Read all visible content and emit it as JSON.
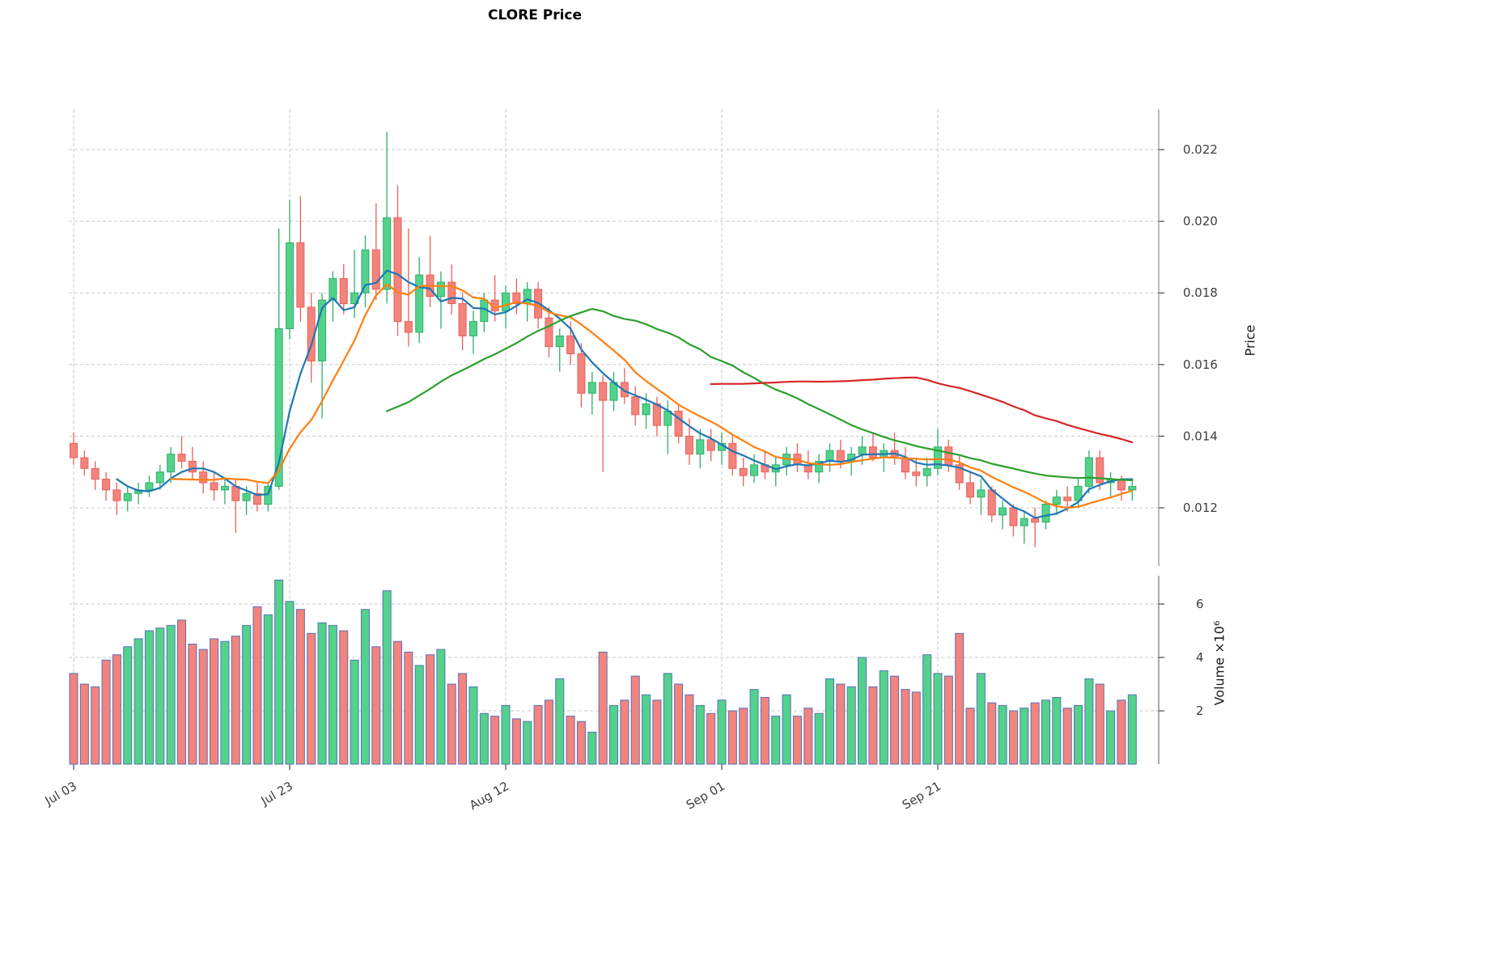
{
  "title": "CLORE Price",
  "chart_data": {
    "type": "candlestick",
    "title": "CLORE Price",
    "grid": "dashed",
    "legend": "none",
    "price_axis": {
      "label": "Price",
      "side": "right",
      "ticks": [
        0.012,
        0.014,
        0.016,
        0.018,
        0.02,
        0.022
      ],
      "ylim": [
        0.0105,
        0.0231
      ]
    },
    "volume_axis": {
      "label": "Volume ×10⁶",
      "side": "right",
      "ticks": [
        2,
        4,
        6
      ],
      "ylim": [
        0,
        7
      ]
    },
    "x_axis": {
      "tick_labels": [
        "Jul 03",
        "Jul 23",
        "Aug 12",
        "Sep 01",
        "Sep 21"
      ],
      "tick_indices": [
        0,
        20,
        40,
        60,
        80
      ],
      "label_rotation_deg": 30
    },
    "style": {
      "up": "#53d28b",
      "up_edge": "#2fae6b",
      "down": "#f3837d",
      "down_edge": "#e9605a",
      "volume_edge": "#5572b8",
      "grid_color": "#c9c9c9",
      "axis_color": "#444444",
      "background": "#ffffff"
    },
    "moving_averages": [
      {
        "name": "MA5",
        "window": 5,
        "color": "#1f77b4"
      },
      {
        "name": "MA10",
        "window": 10,
        "color": "#ff7f0e"
      },
      {
        "name": "MA30",
        "window": 30,
        "color": "#2ca02c"
      },
      {
        "name": "MA60",
        "window": 60,
        "color": "#d62728"
      }
    ],
    "dates": [
      "Jul 03",
      "Jul 04",
      "Jul 05",
      "Jul 06",
      "Jul 07",
      "Jul 08",
      "Jul 09",
      "Jul 10",
      "Jul 11",
      "Jul 12",
      "Jul 13",
      "Jul 14",
      "Jul 15",
      "Jul 16",
      "Jul 17",
      "Jul 18",
      "Jul 19",
      "Jul 20",
      "Jul 21",
      "Jul 22",
      "Jul 23",
      "Jul 24",
      "Jul 25",
      "Jul 26",
      "Jul 27",
      "Jul 28",
      "Jul 29",
      "Jul 30",
      "Jul 31",
      "Aug 01",
      "Aug 02",
      "Aug 03",
      "Aug 04",
      "Aug 05",
      "Aug 06",
      "Aug 07",
      "Aug 08",
      "Aug 09",
      "Aug 10",
      "Aug 11",
      "Aug 12",
      "Aug 13",
      "Aug 14",
      "Aug 15",
      "Aug 16",
      "Aug 17",
      "Aug 18",
      "Aug 19",
      "Aug 20",
      "Aug 21",
      "Aug 22",
      "Aug 23",
      "Aug 24",
      "Aug 25",
      "Aug 26",
      "Aug 27",
      "Aug 28",
      "Aug 29",
      "Aug 30",
      "Aug 31",
      "Sep 01",
      "Sep 02",
      "Sep 03",
      "Sep 04",
      "Sep 05",
      "Sep 06",
      "Sep 07",
      "Sep 08",
      "Sep 09",
      "Sep 10",
      "Sep 11",
      "Sep 12",
      "Sep 13",
      "Sep 14",
      "Sep 15",
      "Sep 16",
      "Sep 17",
      "Sep 18",
      "Sep 19",
      "Sep 20",
      "Sep 21",
      "Sep 22",
      "Sep 23",
      "Sep 24",
      "Sep 25",
      "Sep 26",
      "Sep 27",
      "Sep 28",
      "Sep 29",
      "Sep 30",
      "Oct 01",
      "Oct 02",
      "Oct 03",
      "Oct 04",
      "Oct 05",
      "Oct 06",
      "Oct 07",
      "Oct 08",
      "Oct 09"
    ],
    "ohlc": [
      [
        0.0138,
        0.0141,
        0.0132,
        0.0134
      ],
      [
        0.0134,
        0.0136,
        0.0129,
        0.0131
      ],
      [
        0.0131,
        0.0133,
        0.0125,
        0.0128
      ],
      [
        0.0128,
        0.013,
        0.0122,
        0.0125
      ],
      [
        0.0125,
        0.0127,
        0.0118,
        0.0122
      ],
      [
        0.0122,
        0.0126,
        0.0119,
        0.0124
      ],
      [
        0.0124,
        0.0127,
        0.0121,
        0.0125
      ],
      [
        0.0125,
        0.0129,
        0.0123,
        0.0127
      ],
      [
        0.0127,
        0.0132,
        0.0125,
        0.013
      ],
      [
        0.013,
        0.0137,
        0.0127,
        0.0135
      ],
      [
        0.0135,
        0.014,
        0.0131,
        0.0133
      ],
      [
        0.0133,
        0.0137,
        0.0128,
        0.013
      ],
      [
        0.013,
        0.0133,
        0.0124,
        0.0127
      ],
      [
        0.0127,
        0.013,
        0.0122,
        0.0125
      ],
      [
        0.0125,
        0.0128,
        0.0121,
        0.0126
      ],
      [
        0.0126,
        0.0128,
        0.0113,
        0.0122
      ],
      [
        0.0122,
        0.0126,
        0.0118,
        0.0124
      ],
      [
        0.0124,
        0.0127,
        0.0119,
        0.0121
      ],
      [
        0.0121,
        0.0127,
        0.0119,
        0.0126
      ],
      [
        0.0126,
        0.0198,
        0.0125,
        0.017
      ],
      [
        0.017,
        0.0206,
        0.0167,
        0.0194
      ],
      [
        0.0194,
        0.0207,
        0.0172,
        0.0176
      ],
      [
        0.0176,
        0.018,
        0.0155,
        0.0161
      ],
      [
        0.0161,
        0.018,
        0.0145,
        0.0178
      ],
      [
        0.0178,
        0.0186,
        0.0172,
        0.0184
      ],
      [
        0.0184,
        0.0188,
        0.0174,
        0.0177
      ],
      [
        0.0177,
        0.0192,
        0.0173,
        0.018
      ],
      [
        0.018,
        0.0196,
        0.0176,
        0.0192
      ],
      [
        0.0192,
        0.0205,
        0.0178,
        0.0181
      ],
      [
        0.0181,
        0.0225,
        0.0177,
        0.0201
      ],
      [
        0.0201,
        0.021,
        0.0168,
        0.0172
      ],
      [
        0.0172,
        0.0198,
        0.0165,
        0.0169
      ],
      [
        0.0169,
        0.019,
        0.0166,
        0.0185
      ],
      [
        0.0185,
        0.0196,
        0.0176,
        0.0179
      ],
      [
        0.0179,
        0.0186,
        0.017,
        0.0183
      ],
      [
        0.0183,
        0.0188,
        0.0174,
        0.0177
      ],
      [
        0.0177,
        0.018,
        0.0164,
        0.0168
      ],
      [
        0.0168,
        0.0175,
        0.0163,
        0.0172
      ],
      [
        0.0172,
        0.018,
        0.0169,
        0.0178
      ],
      [
        0.0178,
        0.0185,
        0.0172,
        0.0175
      ],
      [
        0.0175,
        0.0182,
        0.017,
        0.018
      ],
      [
        0.018,
        0.0184,
        0.0174,
        0.0177
      ],
      [
        0.0177,
        0.0183,
        0.0172,
        0.0181
      ],
      [
        0.0181,
        0.0183,
        0.017,
        0.0173
      ],
      [
        0.0173,
        0.0176,
        0.0162,
        0.0165
      ],
      [
        0.0165,
        0.017,
        0.0158,
        0.0168
      ],
      [
        0.0168,
        0.0172,
        0.016,
        0.0163
      ],
      [
        0.0163,
        0.0166,
        0.0148,
        0.0152
      ],
      [
        0.0152,
        0.0158,
        0.0146,
        0.0155
      ],
      [
        0.0155,
        0.0157,
        0.013,
        0.015
      ],
      [
        0.015,
        0.0158,
        0.0147,
        0.0155
      ],
      [
        0.0155,
        0.0159,
        0.0149,
        0.0151
      ],
      [
        0.0151,
        0.0154,
        0.0143,
        0.0146
      ],
      [
        0.0146,
        0.0152,
        0.0142,
        0.0149
      ],
      [
        0.0149,
        0.0151,
        0.014,
        0.0143
      ],
      [
        0.0143,
        0.015,
        0.0135,
        0.0147
      ],
      [
        0.0147,
        0.0149,
        0.0138,
        0.014
      ],
      [
        0.014,
        0.0145,
        0.0132,
        0.0135
      ],
      [
        0.0135,
        0.0142,
        0.0131,
        0.0139
      ],
      [
        0.0139,
        0.0142,
        0.0133,
        0.0136
      ],
      [
        0.0136,
        0.0141,
        0.0132,
        0.0138
      ],
      [
        0.0138,
        0.014,
        0.0129,
        0.0131
      ],
      [
        0.0131,
        0.0134,
        0.0126,
        0.0129
      ],
      [
        0.0129,
        0.0135,
        0.0127,
        0.0132
      ],
      [
        0.0132,
        0.0136,
        0.0128,
        0.013
      ],
      [
        0.013,
        0.0134,
        0.0126,
        0.0132
      ],
      [
        0.0132,
        0.0137,
        0.0129,
        0.0135
      ],
      [
        0.0135,
        0.0138,
        0.013,
        0.0132
      ],
      [
        0.0132,
        0.0136,
        0.0128,
        0.013
      ],
      [
        0.013,
        0.0135,
        0.0127,
        0.0133
      ],
      [
        0.0133,
        0.0138,
        0.013,
        0.0136
      ],
      [
        0.0136,
        0.0139,
        0.0131,
        0.0133
      ],
      [
        0.0133,
        0.0137,
        0.0129,
        0.0135
      ],
      [
        0.0135,
        0.014,
        0.0132,
        0.0137
      ],
      [
        0.0137,
        0.0141,
        0.0133,
        0.0134
      ],
      [
        0.0134,
        0.0138,
        0.013,
        0.0136
      ],
      [
        0.0136,
        0.0141,
        0.0132,
        0.0134
      ],
      [
        0.0134,
        0.0137,
        0.0128,
        0.013
      ],
      [
        0.013,
        0.0134,
        0.0126,
        0.0129
      ],
      [
        0.0129,
        0.0134,
        0.0126,
        0.0131
      ],
      [
        0.0131,
        0.0142,
        0.0129,
        0.0137
      ],
      [
        0.0137,
        0.0139,
        0.013,
        0.0132
      ],
      [
        0.0132,
        0.0135,
        0.0125,
        0.0127
      ],
      [
        0.0127,
        0.013,
        0.0121,
        0.0123
      ],
      [
        0.0123,
        0.0128,
        0.0118,
        0.0125
      ],
      [
        0.0125,
        0.0126,
        0.0116,
        0.0118
      ],
      [
        0.0118,
        0.0122,
        0.0114,
        0.012
      ],
      [
        0.012,
        0.0121,
        0.0112,
        0.0115
      ],
      [
        0.0115,
        0.0119,
        0.011,
        0.0117
      ],
      [
        0.0117,
        0.012,
        0.0109,
        0.0116
      ],
      [
        0.0116,
        0.0122,
        0.0114,
        0.0121
      ],
      [
        0.0121,
        0.0125,
        0.0118,
        0.0123
      ],
      [
        0.0123,
        0.0126,
        0.0119,
        0.0122
      ],
      [
        0.0122,
        0.0128,
        0.012,
        0.0126
      ],
      [
        0.0126,
        0.0136,
        0.0124,
        0.0134
      ],
      [
        0.0134,
        0.0136,
        0.0125,
        0.0127
      ],
      [
        0.0127,
        0.013,
        0.0123,
        0.0128
      ],
      [
        0.0128,
        0.0129,
        0.0122,
        0.0125
      ],
      [
        0.0125,
        0.0128,
        0.0122,
        0.0126
      ]
    ],
    "volume_millions": [
      3.4,
      3.0,
      2.9,
      3.9,
      4.1,
      4.4,
      4.7,
      5.0,
      5.1,
      5.2,
      5.4,
      4.5,
      4.3,
      4.7,
      4.6,
      4.8,
      5.2,
      5.9,
      5.6,
      6.9,
      6.1,
      5.8,
      4.9,
      5.3,
      5.2,
      5.0,
      3.9,
      5.8,
      4.4,
      6.5,
      4.6,
      4.2,
      3.7,
      4.1,
      4.3,
      3.0,
      3.4,
      2.9,
      1.9,
      1.8,
      2.2,
      1.7,
      1.6,
      2.2,
      2.4,
      3.2,
      1.8,
      1.6,
      1.2,
      4.2,
      2.2,
      2.4,
      3.3,
      2.6,
      2.4,
      3.4,
      3.0,
      2.6,
      2.2,
      1.9,
      2.4,
      2.0,
      2.1,
      2.8,
      2.5,
      1.8,
      2.6,
      1.8,
      2.1,
      1.9,
      3.2,
      3.0,
      2.9,
      4.0,
      2.9,
      3.5,
      3.3,
      2.8,
      2.7,
      4.1,
      3.4,
      3.3,
      4.9,
      2.1,
      3.4,
      2.3,
      2.2,
      2.0,
      2.1,
      2.3,
      2.4,
      2.5,
      2.1,
      2.2,
      3.2,
      3.0,
      2.0,
      2.4,
      2.6
    ]
  }
}
